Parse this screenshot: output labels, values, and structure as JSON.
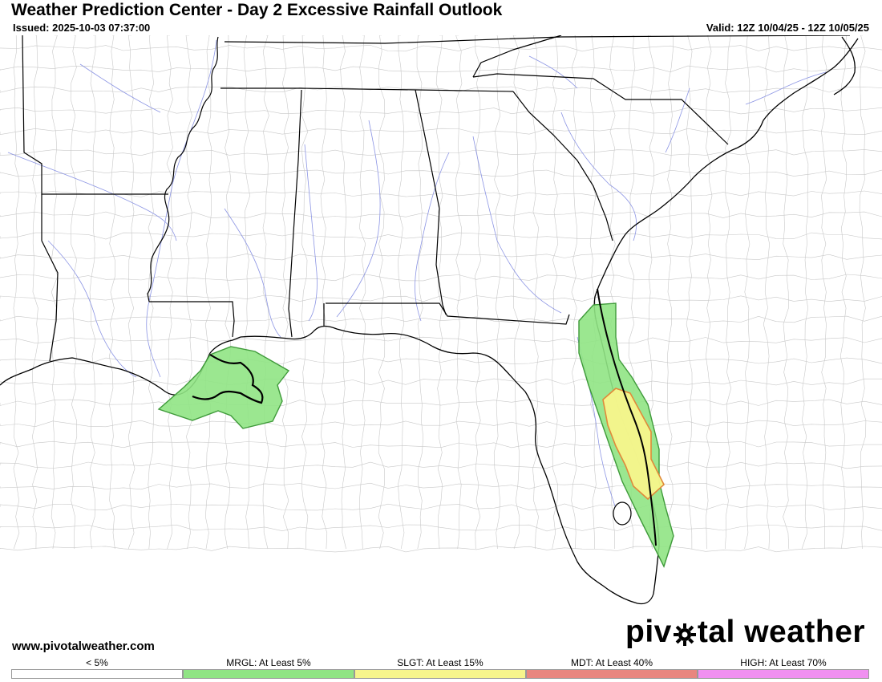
{
  "header": {
    "title": "Weather Prediction Center - Day 2 Excessive Rainfall Outlook",
    "issued": "Issued: 2025-10-03 07:37:00",
    "valid": "Valid: 12Z 10/04/25 - 12Z 10/05/25"
  },
  "footer": {
    "website": "www.pivotalweather.com",
    "brand_left": "piv",
    "brand_right": "tal weather",
    "brand_icon": "sun-gear-icon"
  },
  "map": {
    "risk_areas": [
      {
        "category": "MRGL",
        "region": "North-central Gulf coast (offshore Louisiana / Mississippi)"
      },
      {
        "category": "MRGL",
        "region": "Florida Atlantic coast (Jacksonville to Palm Beach)"
      },
      {
        "category": "SLGT",
        "region": "East-central Florida (Space Coast)"
      }
    ]
  },
  "legend": [
    {
      "label": "< 5%",
      "color": "#ffffff"
    },
    {
      "label": "MRGL: At Least 5%",
      "color": "#90e484"
    },
    {
      "label": "SLGT: At Least 15%",
      "color": "#f7f58c"
    },
    {
      "label": "MDT: At Least 40%",
      "color": "#e8867f"
    },
    {
      "label": "HIGH: At Least 70%",
      "color": "#f090f0"
    }
  ],
  "colors": {
    "state_border": "#000000",
    "county_border": "#bdbdbd",
    "river": "#7b86e0",
    "mrgl_outline": "#3f9a3a",
    "slgt_outline": "#e08a3a"
  }
}
